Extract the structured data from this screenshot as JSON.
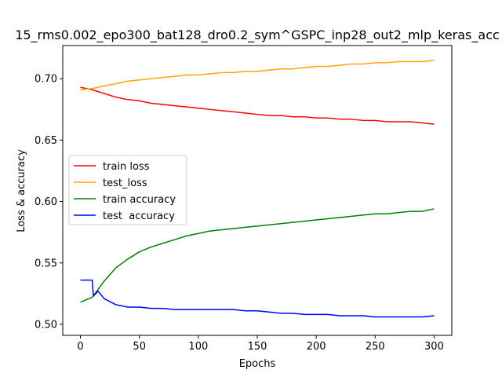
{
  "chart_data": {
    "type": "line",
    "title": "15_rms0.002_epo300_bat128_dro0.2_sym^GSPC_inp28_out2_mlp_keras_acc",
    "xlabel": "Epochs",
    "ylabel": "Loss & accuracy",
    "xlim": [
      -15,
      315
    ],
    "ylim": [
      0.491,
      0.727
    ],
    "xticks": [
      0,
      50,
      100,
      150,
      200,
      250,
      300
    ],
    "yticks": [
      0.5,
      0.55,
      0.6,
      0.65,
      0.7
    ],
    "xtick_labels": [
      "0",
      "50",
      "100",
      "150",
      "200",
      "250",
      "300"
    ],
    "ytick_labels": [
      "0.50",
      "0.55",
      "0.60",
      "0.65",
      "0.70"
    ],
    "grid": false,
    "legend_position": "center-left",
    "series": [
      {
        "name": "train loss",
        "color": "#ff0000",
        "x": [
          0,
          10,
          20,
          30,
          40,
          50,
          60,
          70,
          80,
          90,
          100,
          110,
          120,
          130,
          140,
          150,
          160,
          170,
          180,
          190,
          200,
          210,
          220,
          230,
          240,
          250,
          260,
          270,
          280,
          290,
          300
        ],
        "values": [
          0.693,
          0.691,
          0.688,
          0.685,
          0.683,
          0.682,
          0.68,
          0.679,
          0.678,
          0.677,
          0.676,
          0.675,
          0.674,
          0.673,
          0.672,
          0.671,
          0.67,
          0.67,
          0.669,
          0.669,
          0.668,
          0.668,
          0.667,
          0.667,
          0.666,
          0.666,
          0.665,
          0.665,
          0.665,
          0.664,
          0.663
        ]
      },
      {
        "name": "test_loss",
        "color": "#ffa500",
        "x": [
          0,
          10,
          20,
          30,
          40,
          50,
          60,
          70,
          80,
          90,
          100,
          110,
          120,
          130,
          140,
          150,
          160,
          170,
          180,
          190,
          200,
          210,
          220,
          230,
          240,
          250,
          260,
          270,
          280,
          290,
          300
        ],
        "values": [
          0.691,
          0.692,
          0.694,
          0.696,
          0.698,
          0.699,
          0.7,
          0.701,
          0.702,
          0.703,
          0.703,
          0.704,
          0.705,
          0.705,
          0.706,
          0.706,
          0.707,
          0.708,
          0.708,
          0.709,
          0.71,
          0.71,
          0.711,
          0.712,
          0.712,
          0.713,
          0.713,
          0.714,
          0.714,
          0.714,
          0.715
        ]
      },
      {
        "name": "train accuracy",
        "color": "#008000",
        "x": [
          0,
          10,
          20,
          30,
          40,
          50,
          60,
          70,
          80,
          90,
          100,
          110,
          120,
          130,
          140,
          150,
          160,
          170,
          180,
          190,
          200,
          210,
          220,
          230,
          240,
          250,
          260,
          270,
          280,
          290,
          300
        ],
        "values": [
          0.518,
          0.522,
          0.535,
          0.546,
          0.553,
          0.559,
          0.563,
          0.566,
          0.569,
          0.572,
          0.574,
          0.576,
          0.577,
          0.578,
          0.579,
          0.58,
          0.581,
          0.582,
          0.583,
          0.584,
          0.585,
          0.586,
          0.587,
          0.588,
          0.589,
          0.59,
          0.59,
          0.591,
          0.592,
          0.592,
          0.594
        ]
      },
      {
        "name": "test  accuracy",
        "color": "#0000ff",
        "x": [
          0,
          5,
          10,
          11,
          15,
          20,
          30,
          40,
          50,
          60,
          70,
          80,
          90,
          100,
          110,
          120,
          130,
          140,
          150,
          160,
          170,
          180,
          190,
          200,
          210,
          220,
          230,
          240,
          250,
          260,
          270,
          280,
          290,
          300
        ],
        "values": [
          0.536,
          0.536,
          0.536,
          0.523,
          0.527,
          0.521,
          0.516,
          0.514,
          0.514,
          0.513,
          0.513,
          0.512,
          0.512,
          0.512,
          0.512,
          0.512,
          0.512,
          0.511,
          0.511,
          0.51,
          0.509,
          0.509,
          0.508,
          0.508,
          0.508,
          0.507,
          0.507,
          0.507,
          0.506,
          0.506,
          0.506,
          0.506,
          0.506,
          0.507
        ]
      }
    ]
  }
}
